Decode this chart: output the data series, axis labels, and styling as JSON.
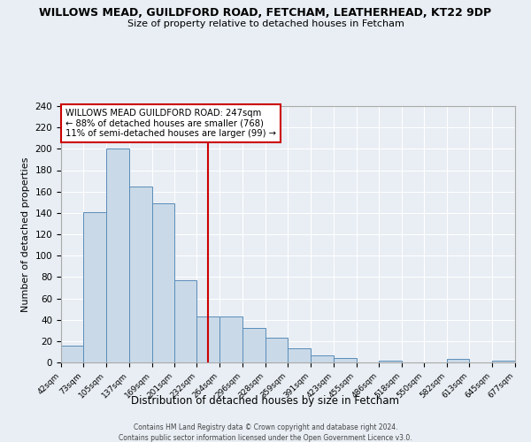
{
  "title": "WILLOWS MEAD, GUILDFORD ROAD, FETCHAM, LEATHERHEAD, KT22 9DP",
  "subtitle": "Size of property relative to detached houses in Fetcham",
  "xlabel": "Distribution of detached houses by size in Fetcham",
  "ylabel": "Number of detached properties",
  "bar_edges": [
    42,
    73,
    105,
    137,
    169,
    201,
    232,
    264,
    296,
    328,
    359,
    391,
    423,
    455,
    486,
    518,
    550,
    582,
    613,
    645,
    677
  ],
  "bar_heights": [
    16,
    141,
    200,
    165,
    149,
    77,
    43,
    43,
    32,
    23,
    13,
    7,
    4,
    0,
    2,
    0,
    0,
    3,
    0,
    2
  ],
  "bar_color": "#c9d9e8",
  "bar_edge_color": "#5b8db8",
  "vline_x": 247,
  "vline_color": "#cc0000",
  "annotation_line1": "WILLOWS MEAD GUILDFORD ROAD: 247sqm",
  "annotation_line2": "← 88% of detached houses are smaller (768)",
  "annotation_line3": "11% of semi-detached houses are larger (99) →",
  "annotation_box_color": "#ffffff",
  "annotation_box_edge": "#cc0000",
  "ylim": [
    0,
    240
  ],
  "yticks": [
    0,
    20,
    40,
    60,
    80,
    100,
    120,
    140,
    160,
    180,
    200,
    220,
    240
  ],
  "bg_color": "#e8eef4",
  "grid_color": "#ffffff",
  "footer_line1": "Contains HM Land Registry data © Crown copyright and database right 2024.",
  "footer_line2": "Contains public sector information licensed under the Open Government Licence v3.0."
}
